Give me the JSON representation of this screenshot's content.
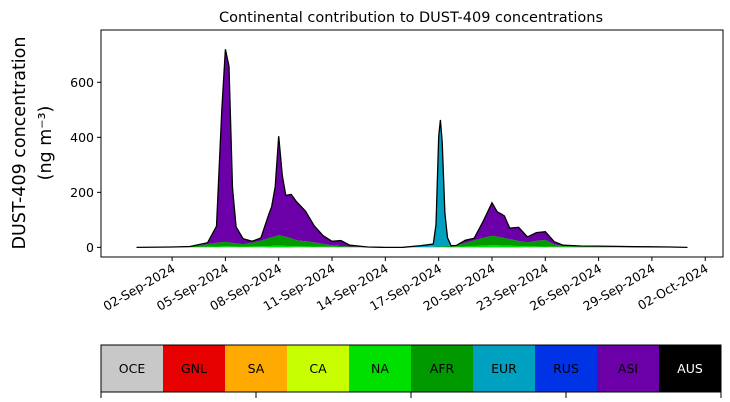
{
  "chart_data": {
    "type": "area",
    "title": "Continental contribution to DUST-409 concentrations",
    "ylabel_line1": "DUST-409 concentration",
    "ylabel_line2": "(ng m⁻³)",
    "xlabel": "",
    "xlim": [
      "2024-08-29",
      "2024-10-03"
    ],
    "ylim": [
      -35,
      790
    ],
    "yticks": [
      0,
      200,
      400,
      600
    ],
    "xticks": [
      {
        "date": "2024-09-02",
        "label": "02-Sep-2024"
      },
      {
        "date": "2024-09-05",
        "label": "05-Sep-2024"
      },
      {
        "date": "2024-09-08",
        "label": "08-Sep-2024"
      },
      {
        "date": "2024-09-11",
        "label": "11-Sep-2024"
      },
      {
        "date": "2024-09-14",
        "label": "14-Sep-2024"
      },
      {
        "date": "2024-09-17",
        "label": "17-Sep-2024"
      },
      {
        "date": "2024-09-20",
        "label": "20-Sep-2024"
      },
      {
        "date": "2024-09-23",
        "label": "23-Sep-2024"
      },
      {
        "date": "2024-09-26",
        "label": "26-Sep-2024"
      },
      {
        "date": "2024-09-29",
        "label": "29-Sep-2024"
      },
      {
        "date": "2024-10-02",
        "label": "02-Oct-2024"
      }
    ],
    "grid": false,
    "total_outline_color": "#000000",
    "series": [
      {
        "name": "NA",
        "color": "#00e000",
        "points": [
          [
            "2024-08-31",
            0
          ],
          [
            "2024-09-02",
            0
          ],
          [
            "2024-09-03",
            1
          ],
          [
            "2024-09-04",
            2
          ],
          [
            "2024-09-05",
            4
          ],
          [
            "2024-09-06",
            3
          ],
          [
            "2024-09-07",
            4
          ],
          [
            "2024-09-08",
            6
          ],
          [
            "2024-09-09",
            4
          ],
          [
            "2024-09-10",
            3
          ],
          [
            "2024-09-11",
            2
          ],
          [
            "2024-09-12",
            1
          ],
          [
            "2024-09-14",
            0
          ],
          [
            "2024-09-17",
            1
          ],
          [
            "2024-09-18",
            2
          ],
          [
            "2024-09-19",
            5
          ],
          [
            "2024-09-20",
            8
          ],
          [
            "2024-09-21",
            6
          ],
          [
            "2024-09-22",
            4
          ],
          [
            "2024-09-23",
            3
          ],
          [
            "2024-09-24",
            2
          ],
          [
            "2024-09-26",
            2
          ],
          [
            "2024-09-28",
            1
          ],
          [
            "2024-09-30",
            1
          ],
          [
            "2024-10-01",
            0
          ]
        ]
      },
      {
        "name": "AFR",
        "color": "#009a00",
        "points": [
          [
            "2024-08-31",
            0
          ],
          [
            "2024-09-03",
            2
          ],
          [
            "2024-09-04",
            10
          ],
          [
            "2024-09-04.5",
            14
          ],
          [
            "2024-09-05",
            16
          ],
          [
            "2024-09-05.5",
            12
          ],
          [
            "2024-09-06",
            8
          ],
          [
            "2024-09-07",
            20
          ],
          [
            "2024-09-07.5",
            30
          ],
          [
            "2024-09-08",
            38
          ],
          [
            "2024-09-08.5",
            32
          ],
          [
            "2024-09-09",
            22
          ],
          [
            "2024-09-10",
            15
          ],
          [
            "2024-09-11",
            5
          ],
          [
            "2024-09-12",
            2
          ],
          [
            "2024-09-14",
            0
          ],
          [
            "2024-09-16",
            0
          ],
          [
            "2024-09-17",
            2
          ],
          [
            "2024-09-18",
            5
          ],
          [
            "2024-09-19.5",
            28
          ],
          [
            "2024-09-20",
            34
          ],
          [
            "2024-09-20.5",
            30
          ],
          [
            "2024-09-21",
            24
          ],
          [
            "2024-09-21.5",
            18
          ],
          [
            "2024-09-22",
            14
          ],
          [
            "2024-09-22.5",
            20
          ],
          [
            "2024-09-23",
            24
          ],
          [
            "2024-09-23.5",
            8
          ],
          [
            "2024-09-24",
            4
          ],
          [
            "2024-09-25",
            3
          ],
          [
            "2024-09-27",
            2
          ],
          [
            "2024-09-29",
            1
          ],
          [
            "2024-10-01",
            0
          ]
        ]
      },
      {
        "name": "EUR",
        "color": "#00a0c0",
        "points": [
          [
            "2024-08-31",
            0
          ],
          [
            "2024-09-15",
            0
          ],
          [
            "2024-09-16.7",
            10
          ],
          [
            "2024-09-16.85",
            80
          ],
          [
            "2024-09-17",
            400
          ],
          [
            "2024-09-17.1",
            460
          ],
          [
            "2024-09-17.2",
            380
          ],
          [
            "2024-09-17.35",
            120
          ],
          [
            "2024-09-17.5",
            30
          ],
          [
            "2024-09-17.7",
            0
          ],
          [
            "2024-10-01",
            0
          ]
        ]
      },
      {
        "name": "ASI",
        "color": "#6c00a8",
        "points": [
          [
            "2024-08-31",
            0
          ],
          [
            "2024-09-03",
            0
          ],
          [
            "2024-09-04",
            5
          ],
          [
            "2024-09-04.5",
            60
          ],
          [
            "2024-09-04.8",
            480
          ],
          [
            "2024-09-05",
            700
          ],
          [
            "2024-09-05.2",
            640
          ],
          [
            "2024-09-05.4",
            200
          ],
          [
            "2024-09-05.6",
            60
          ],
          [
            "2024-09-05.8",
            40
          ],
          [
            "2024-09-06",
            20
          ],
          [
            "2024-09-06.5",
            5
          ],
          [
            "2024-09-07",
            10
          ],
          [
            "2024-09-07.4",
            80
          ],
          [
            "2024-09-07.6",
            110
          ],
          [
            "2024-09-07.8",
            180
          ],
          [
            "2024-09-08",
            360
          ],
          [
            "2024-09-08.2",
            220
          ],
          [
            "2024-09-08.4",
            150
          ],
          [
            "2024-09-08.7",
            160
          ],
          [
            "2024-09-09",
            140
          ],
          [
            "2024-09-09.5",
            110
          ],
          [
            "2024-09-10",
            60
          ],
          [
            "2024-09-10.5",
            30
          ],
          [
            "2024-09-11",
            15
          ],
          [
            "2024-09-11.5",
            20
          ],
          [
            "2024-09-12",
            5
          ],
          [
            "2024-09-13",
            0
          ],
          [
            "2024-09-18",
            0
          ],
          [
            "2024-09-18.5",
            10
          ],
          [
            "2024-09-19",
            8
          ],
          [
            "2024-09-19.5",
            60
          ],
          [
            "2024-09-20",
            120
          ],
          [
            "2024-09-20.3",
            90
          ],
          [
            "2024-09-20.7",
            80
          ],
          [
            "2024-09-21",
            40
          ],
          [
            "2024-09-21.5",
            50
          ],
          [
            "2024-09-22",
            20
          ],
          [
            "2024-09-22.5",
            30
          ],
          [
            "2024-09-23",
            30
          ],
          [
            "2024-09-23.5",
            10
          ],
          [
            "2024-09-24",
            2
          ],
          [
            "2024-09-25",
            0
          ],
          [
            "2024-10-01",
            0
          ]
        ]
      }
    ],
    "legend": {
      "placement": "bottom",
      "items": [
        {
          "name": "OCE",
          "color": "#c8c8c8",
          "text_color": "#000000"
        },
        {
          "name": "GNL",
          "color": "#e60000",
          "text_color": "#000000"
        },
        {
          "name": "SA",
          "color": "#ffaa00",
          "text_color": "#000000"
        },
        {
          "name": "CA",
          "color": "#c8ff00",
          "text_color": "#000000"
        },
        {
          "name": "NA",
          "color": "#00e000",
          "text_color": "#000000"
        },
        {
          "name": "AFR",
          "color": "#009a00",
          "text_color": "#000000"
        },
        {
          "name": "EUR",
          "color": "#00a0c0",
          "text_color": "#000000"
        },
        {
          "name": "RUS",
          "color": "#0032e6",
          "text_color": "#000000"
        },
        {
          "name": "ASI",
          "color": "#6c00a8",
          "text_color": "#000000"
        },
        {
          "name": "AUS",
          "color": "#000000",
          "text_color": "#ffffff"
        }
      ]
    }
  }
}
